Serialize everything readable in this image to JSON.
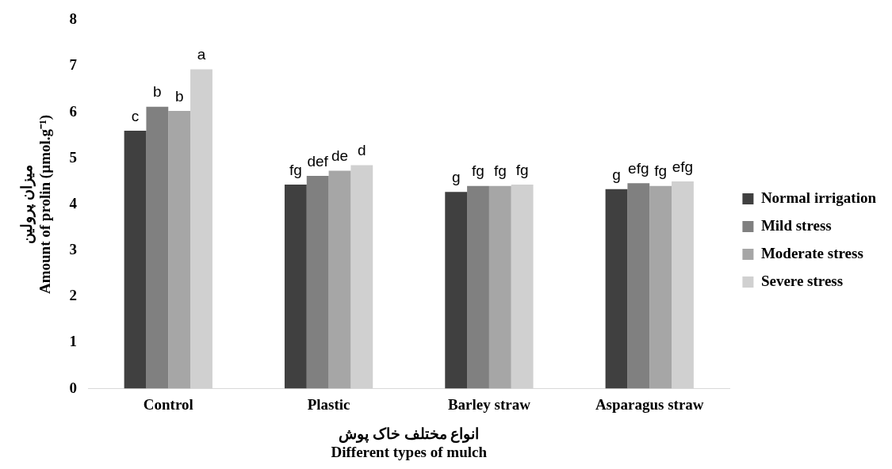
{
  "chart_data": {
    "type": "bar",
    "xlabel": "انواع مختلف خاک پوش\nDifferent types of mulch",
    "ylabel": "میزان پرولین\nAmount of prolin (µmol.g⁻¹)",
    "categories": [
      "Control",
      "Plastic",
      "Barley straw",
      "Asparagus straw"
    ],
    "series": [
      {
        "name": "Normal irrigation",
        "color": "#404040",
        "values": [
          5.6,
          4.43,
          4.27,
          4.33
        ],
        "value_labels": [
          "c",
          "fg",
          "g",
          "g"
        ]
      },
      {
        "name": "Mild stress",
        "color": "#808080",
        "values": [
          6.12,
          4.62,
          4.4,
          4.46
        ],
        "value_labels": [
          "b",
          "def",
          "fg",
          "efg"
        ]
      },
      {
        "name": "Moderate stress",
        "color": "#a6a6a6",
        "values": [
          6.03,
          4.73,
          4.4,
          4.4
        ],
        "value_labels": [
          "b",
          "de",
          "fg",
          "fg"
        ]
      },
      {
        "name": "Severe stress",
        "color": "#d0d0d0",
        "values": [
          6.93,
          4.85,
          4.43,
          4.5
        ],
        "value_labels": [
          "a",
          "d",
          "fg",
          "efg"
        ]
      }
    ],
    "ylim": [
      0,
      8
    ],
    "yticks": [
      0,
      1,
      2,
      3,
      4,
      5,
      6,
      7,
      8
    ],
    "grid": false,
    "legend": "right"
  }
}
